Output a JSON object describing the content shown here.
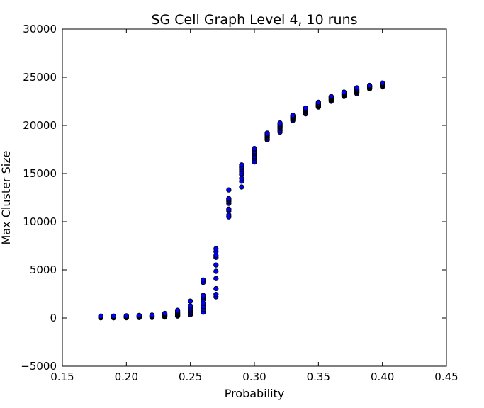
{
  "chart_data": {
    "type": "scatter",
    "title": "SG Cell Graph Level 4, 10 runs",
    "xlabel": "Probability",
    "ylabel": "Max Cluster Size",
    "xlim": [
      0.15,
      0.45
    ],
    "ylim": [
      -5000,
      30000
    ],
    "x_ticks": [
      "0.15",
      "0.20",
      "0.25",
      "0.30",
      "0.35",
      "0.40",
      "0.45"
    ],
    "y_ticks": [
      "−5000",
      "0",
      "5000",
      "10000",
      "15000",
      "20000",
      "25000",
      "30000"
    ],
    "grid": false,
    "legend": "none",
    "marker_color": "#0000ff",
    "marker_edge": "#000000",
    "series": [
      {
        "points": [
          [
            0.18,
            20
          ],
          [
            0.18,
            40
          ],
          [
            0.18,
            60
          ],
          [
            0.18,
            80
          ],
          [
            0.18,
            100
          ],
          [
            0.18,
            120
          ],
          [
            0.18,
            140
          ],
          [
            0.18,
            160
          ],
          [
            0.18,
            180
          ],
          [
            0.18,
            200
          ],
          [
            0.19,
            20
          ],
          [
            0.19,
            40
          ],
          [
            0.19,
            60
          ],
          [
            0.19,
            80
          ],
          [
            0.19,
            100
          ],
          [
            0.19,
            120
          ],
          [
            0.19,
            140
          ],
          [
            0.19,
            160
          ],
          [
            0.19,
            180
          ],
          [
            0.19,
            200
          ],
          [
            0.2,
            30
          ],
          [
            0.2,
            60
          ],
          [
            0.2,
            90
          ],
          [
            0.2,
            110
          ],
          [
            0.2,
            130
          ],
          [
            0.2,
            150
          ],
          [
            0.2,
            170
          ],
          [
            0.2,
            190
          ],
          [
            0.2,
            210
          ],
          [
            0.2,
            230
          ],
          [
            0.21,
            50
          ],
          [
            0.21,
            80
          ],
          [
            0.21,
            100
          ],
          [
            0.21,
            130
          ],
          [
            0.21,
            150
          ],
          [
            0.21,
            170
          ],
          [
            0.21,
            200
          ],
          [
            0.21,
            220
          ],
          [
            0.21,
            240
          ],
          [
            0.21,
            260
          ],
          [
            0.22,
            60
          ],
          [
            0.22,
            100
          ],
          [
            0.22,
            130
          ],
          [
            0.22,
            160
          ],
          [
            0.22,
            180
          ],
          [
            0.22,
            200
          ],
          [
            0.22,
            220
          ],
          [
            0.22,
            250
          ],
          [
            0.22,
            270
          ],
          [
            0.22,
            300
          ],
          [
            0.23,
            100
          ],
          [
            0.23,
            150
          ],
          [
            0.23,
            200
          ],
          [
            0.23,
            230
          ],
          [
            0.23,
            260
          ],
          [
            0.23,
            300
          ],
          [
            0.23,
            340
          ],
          [
            0.23,
            380
          ],
          [
            0.23,
            420
          ],
          [
            0.23,
            480
          ],
          [
            0.24,
            200
          ],
          [
            0.24,
            260
          ],
          [
            0.24,
            320
          ],
          [
            0.24,
            380
          ],
          [
            0.24,
            430
          ],
          [
            0.24,
            480
          ],
          [
            0.24,
            550
          ],
          [
            0.24,
            620
          ],
          [
            0.24,
            700
          ],
          [
            0.24,
            800
          ],
          [
            0.25,
            350
          ],
          [
            0.25,
            450
          ],
          [
            0.25,
            550
          ],
          [
            0.25,
            650
          ],
          [
            0.25,
            750
          ],
          [
            0.25,
            850
          ],
          [
            0.25,
            950
          ],
          [
            0.25,
            1100
          ],
          [
            0.25,
            1250
          ],
          [
            0.25,
            1750
          ],
          [
            0.26,
            600
          ],
          [
            0.26,
            900
          ],
          [
            0.26,
            1200
          ],
          [
            0.26,
            1500
          ],
          [
            0.26,
            1900
          ],
          [
            0.26,
            2100
          ],
          [
            0.26,
            2200
          ],
          [
            0.26,
            2350
          ],
          [
            0.26,
            3700
          ],
          [
            0.26,
            3950
          ],
          [
            0.27,
            2200
          ],
          [
            0.27,
            2450
          ],
          [
            0.27,
            3050
          ],
          [
            0.27,
            4100
          ],
          [
            0.27,
            4850
          ],
          [
            0.27,
            5500
          ],
          [
            0.27,
            6300
          ],
          [
            0.27,
            6500
          ],
          [
            0.27,
            6900
          ],
          [
            0.27,
            7200
          ],
          [
            0.28,
            10500
          ],
          [
            0.28,
            10700
          ],
          [
            0.28,
            11100
          ],
          [
            0.28,
            11300
          ],
          [
            0.28,
            11900
          ],
          [
            0.28,
            12100
          ],
          [
            0.28,
            12200
          ],
          [
            0.28,
            12300
          ],
          [
            0.28,
            12400
          ],
          [
            0.28,
            13300
          ],
          [
            0.29,
            13600
          ],
          [
            0.29,
            14200
          ],
          [
            0.29,
            14500
          ],
          [
            0.29,
            14900
          ],
          [
            0.29,
            15000
          ],
          [
            0.29,
            15200
          ],
          [
            0.29,
            15400
          ],
          [
            0.29,
            15600
          ],
          [
            0.29,
            15700
          ],
          [
            0.29,
            15900
          ],
          [
            0.3,
            16200
          ],
          [
            0.3,
            16400
          ],
          [
            0.3,
            16600
          ],
          [
            0.3,
            16800
          ],
          [
            0.3,
            17000
          ],
          [
            0.3,
            17100
          ],
          [
            0.3,
            17200
          ],
          [
            0.3,
            17300
          ],
          [
            0.3,
            17500
          ],
          [
            0.3,
            17600
          ],
          [
            0.31,
            18500
          ],
          [
            0.31,
            18600
          ],
          [
            0.31,
            18700
          ],
          [
            0.31,
            18800
          ],
          [
            0.31,
            18900
          ],
          [
            0.31,
            18950
          ],
          [
            0.31,
            19000
          ],
          [
            0.31,
            19050
          ],
          [
            0.31,
            19100
          ],
          [
            0.31,
            19200
          ],
          [
            0.32,
            19300
          ],
          [
            0.32,
            19450
          ],
          [
            0.32,
            19550
          ],
          [
            0.32,
            19700
          ],
          [
            0.32,
            19800
          ],
          [
            0.32,
            19900
          ],
          [
            0.32,
            20000
          ],
          [
            0.32,
            20100
          ],
          [
            0.32,
            20150
          ],
          [
            0.32,
            20250
          ],
          [
            0.33,
            20500
          ],
          [
            0.33,
            20600
          ],
          [
            0.33,
            20700
          ],
          [
            0.33,
            20750
          ],
          [
            0.33,
            20800
          ],
          [
            0.33,
            20850
          ],
          [
            0.33,
            20900
          ],
          [
            0.33,
            20950
          ],
          [
            0.33,
            21000
          ],
          [
            0.33,
            21050
          ],
          [
            0.34,
            21200
          ],
          [
            0.34,
            21300
          ],
          [
            0.34,
            21400
          ],
          [
            0.34,
            21450
          ],
          [
            0.34,
            21500
          ],
          [
            0.34,
            21550
          ],
          [
            0.34,
            21600
          ],
          [
            0.34,
            21650
          ],
          [
            0.34,
            21700
          ],
          [
            0.34,
            21800
          ],
          [
            0.35,
            21900
          ],
          [
            0.35,
            21950
          ],
          [
            0.35,
            22000
          ],
          [
            0.35,
            22050
          ],
          [
            0.35,
            22100
          ],
          [
            0.35,
            22150
          ],
          [
            0.35,
            22200
          ],
          [
            0.35,
            22250
          ],
          [
            0.35,
            22300
          ],
          [
            0.35,
            22400
          ],
          [
            0.36,
            22500
          ],
          [
            0.36,
            22600
          ],
          [
            0.36,
            22650
          ],
          [
            0.36,
            22700
          ],
          [
            0.36,
            22750
          ],
          [
            0.36,
            22800
          ],
          [
            0.36,
            22850
          ],
          [
            0.36,
            22900
          ],
          [
            0.36,
            22950
          ],
          [
            0.36,
            23000
          ],
          [
            0.37,
            23000
          ],
          [
            0.37,
            23050
          ],
          [
            0.37,
            23100
          ],
          [
            0.37,
            23150
          ],
          [
            0.37,
            23200
          ],
          [
            0.37,
            23250
          ],
          [
            0.37,
            23300
          ],
          [
            0.37,
            23350
          ],
          [
            0.37,
            23400
          ],
          [
            0.37,
            23450
          ],
          [
            0.38,
            23300
          ],
          [
            0.38,
            23400
          ],
          [
            0.38,
            23450
          ],
          [
            0.38,
            23500
          ],
          [
            0.38,
            23550
          ],
          [
            0.38,
            23600
          ],
          [
            0.38,
            23650
          ],
          [
            0.38,
            23700
          ],
          [
            0.38,
            23800
          ],
          [
            0.38,
            23900
          ],
          [
            0.39,
            23800
          ],
          [
            0.39,
            23850
          ],
          [
            0.39,
            23900
          ],
          [
            0.39,
            23950
          ],
          [
            0.39,
            24000
          ],
          [
            0.39,
            24020
          ],
          [
            0.39,
            24050
          ],
          [
            0.39,
            24080
          ],
          [
            0.39,
            24100
          ],
          [
            0.39,
            24150
          ],
          [
            0.4,
            24000
          ],
          [
            0.4,
            24050
          ],
          [
            0.4,
            24100
          ],
          [
            0.4,
            24150
          ],
          [
            0.4,
            24200
          ],
          [
            0.4,
            24230
          ],
          [
            0.4,
            24260
          ],
          [
            0.4,
            24300
          ],
          [
            0.4,
            24350
          ],
          [
            0.4,
            24400
          ]
        ]
      }
    ]
  }
}
